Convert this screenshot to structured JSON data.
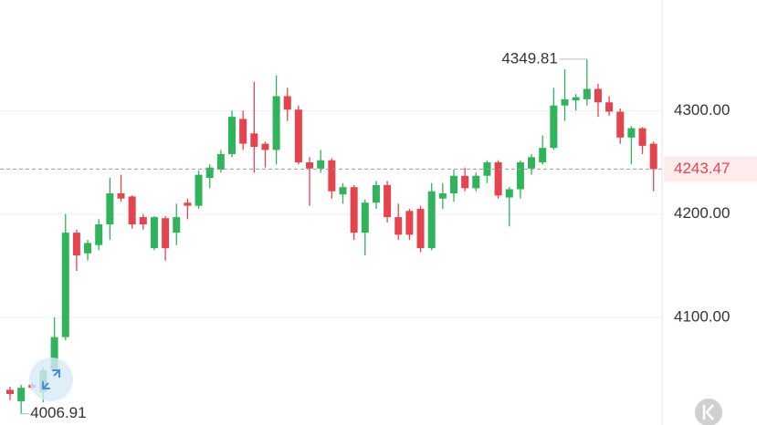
{
  "chart_data": {
    "type": "candlestick",
    "open": [
      4030,
      4019,
      4035,
      4028,
      4050,
      4081,
      4182,
      4162,
      4170,
      4190,
      4220,
      4217,
      4197,
      4167,
      4196,
      4182,
      4211,
      4208,
      4235,
      4243,
      4258,
      4292,
      4278,
      4268,
      4262,
      4314,
      4301,
      4250,
      4244,
      4252,
      4219,
      4226,
      4182,
      4211,
      4228,
      4197,
      4203,
      4205,
      4167,
      4215,
      4220,
      4237,
      4225,
      4237,
      4250,
      4216,
      4224,
      4244,
      4250,
      4264,
      4305,
      4310,
      4311,
      4321,
      4308,
      4299,
      4274,
      4283,
      4268
    ],
    "high": [
      4033,
      4035,
      4037,
      4052,
      4100,
      4200,
      4185,
      4175,
      4195,
      4235,
      4238,
      4218,
      4200,
      4198,
      4198,
      4210,
      4215,
      4242,
      4248,
      4262,
      4300,
      4300,
      4328,
      4270,
      4334,
      4322,
      4305,
      4255,
      4262,
      4254,
      4230,
      4228,
      4214,
      4232,
      4232,
      4210,
      4205,
      4208,
      4230,
      4230,
      4243,
      4245,
      4240,
      4252,
      4252,
      4226,
      4252,
      4258,
      4276,
      4322,
      4340,
      4316,
      4349.81,
      4326,
      4314,
      4302,
      4285,
      4284,
      4270
    ],
    "low": [
      4020,
      4006.91,
      4030,
      4018,
      4048,
      4078,
      4145,
      4155,
      4165,
      4175,
      4212,
      4186,
      4185,
      4165,
      4155,
      4170,
      4195,
      4205,
      4225,
      4240,
      4255,
      4262,
      4240,
      4245,
      4248,
      4290,
      4248,
      4208,
      4240,
      4215,
      4210,
      4175,
      4160,
      4205,
      4192,
      4175,
      4175,
      4163,
      4165,
      4205,
      4212,
      4222,
      4222,
      4230,
      4215,
      4188,
      4215,
      4238,
      4248,
      4262,
      4290,
      4300,
      4305,
      4294,
      4295,
      4268,
      4248,
      4258,
      4222
    ],
    "close": [
      4026,
      4032,
      4032,
      4049,
      4081,
      4182,
      4160,
      4172,
      4190,
      4220,
      4215,
      4190,
      4190,
      4197,
      4167,
      4197,
      4208,
      4238,
      4245,
      4258,
      4294,
      4268,
      4265,
      4262,
      4314,
      4301,
      4250,
      4244,
      4252,
      4222,
      4226,
      4182,
      4211,
      4228,
      4197,
      4180,
      4180,
      4167,
      4222,
      4220,
      4237,
      4225,
      4237,
      4250,
      4218,
      4224,
      4250,
      4255,
      4264,
      4305,
      4311,
      4313,
      4321,
      4308,
      4299,
      4274,
      4283,
      4266,
      4243.47
    ],
    "up_color": "#2fb45c",
    "down_color": "#e5444f",
    "ylim": [
      3996,
      4407
    ],
    "yticks": [
      {
        "value": 4100,
        "label": "4100.00"
      },
      {
        "value": 4200,
        "label": "4200.00"
      },
      {
        "value": 4300,
        "label": "4300.00"
      }
    ],
    "grid": true
  }
}
